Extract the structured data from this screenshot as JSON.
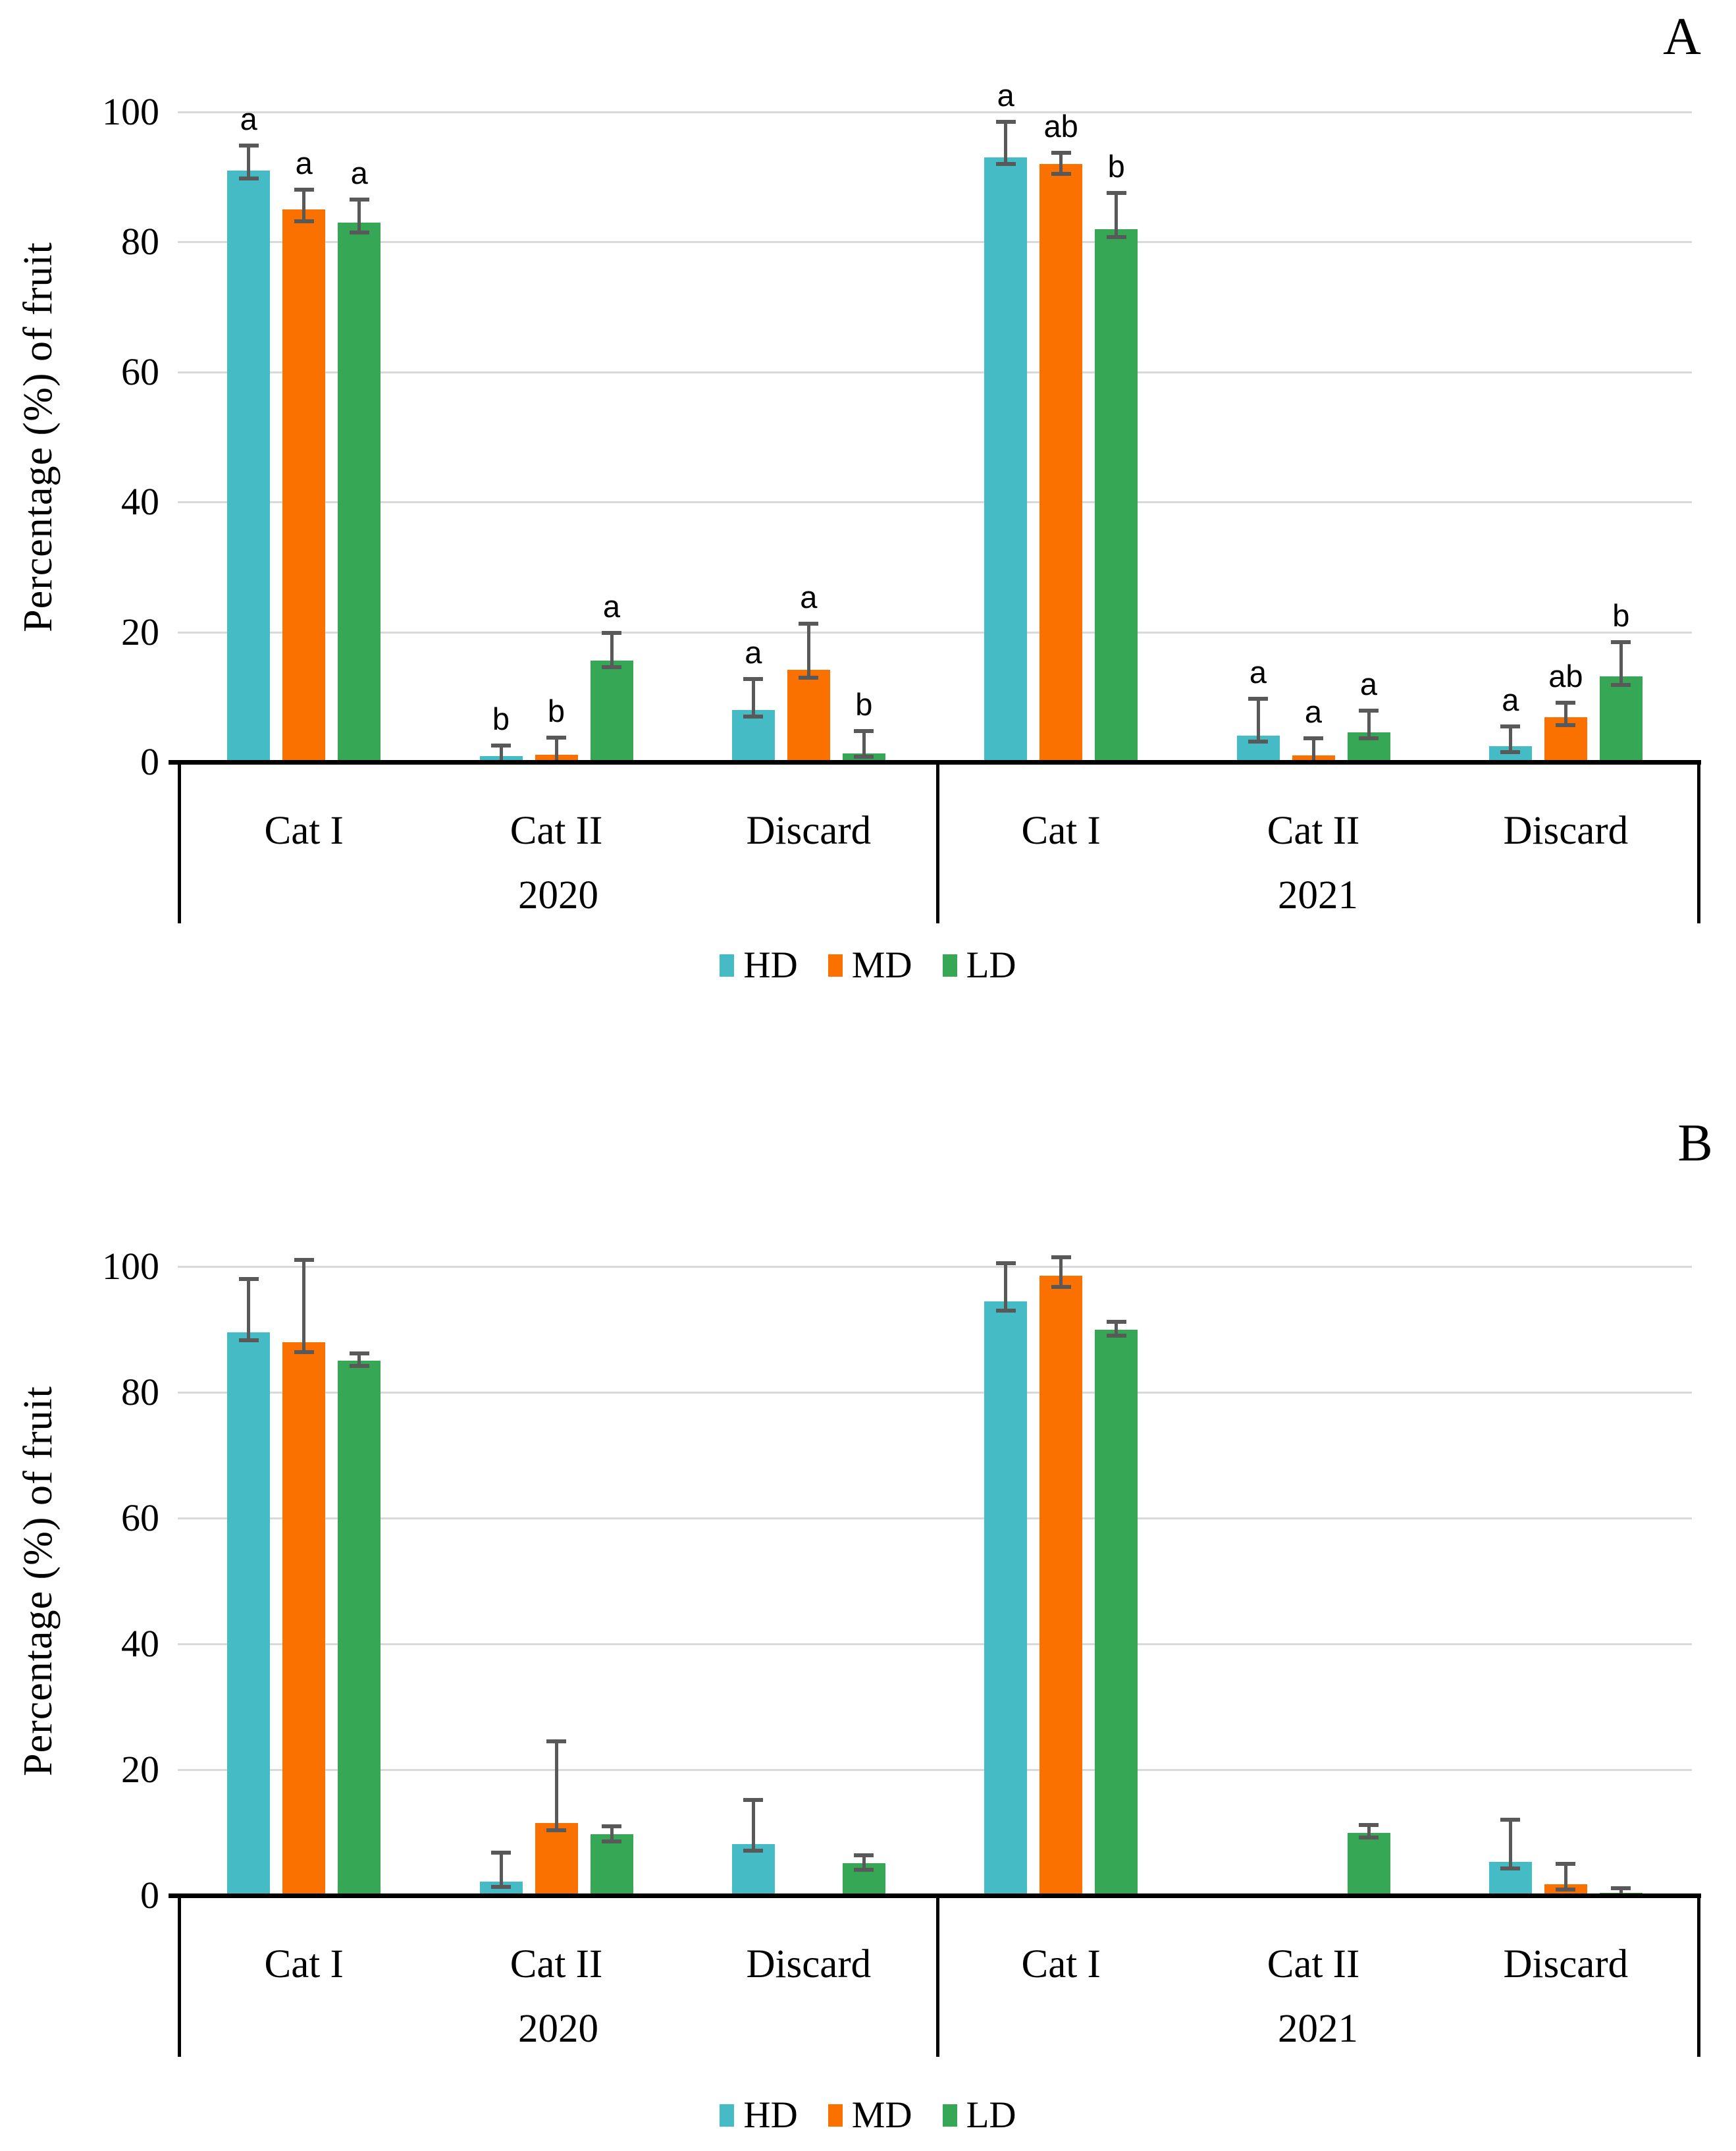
{
  "page_background": "#FFFFFF",
  "colors": {
    "series": {
      "HD": "#45BCC5",
      "MD": "#FB7100",
      "LD": "#36A755"
    },
    "error_bar": "#595959",
    "gridline": "#D9D9D9",
    "axis": "#000000",
    "text": "#000000"
  },
  "legend": {
    "items": [
      {
        "label": "HD",
        "color": "#45BCC5"
      },
      {
        "label": "MD",
        "color": "#FB7100"
      },
      {
        "label": "LD",
        "color": "#36A755"
      }
    ]
  },
  "chart_data": [
    {
      "type": "bar",
      "subtype": "grouped-bar-with-error-bars",
      "panel_label": "A",
      "ylabel": "Percentage (%) of fruit",
      "ylim": [
        0,
        100
      ],
      "yticks": [
        0,
        20,
        40,
        60,
        80,
        100
      ],
      "grid": true,
      "legend_position": "bottom-center",
      "series_names": [
        "HD",
        "MD",
        "LD"
      ],
      "year_groups": [
        {
          "label": "2020",
          "categories": [
            {
              "label": "Cat I",
              "bars": [
                {
                  "series": "HD",
                  "value": 91,
                  "err_up": 3.8,
                  "err_down": 1.2,
                  "letter": "a"
                },
                {
                  "series": "MD",
                  "value": 85,
                  "err_up": 3.0,
                  "err_down": 1.8,
                  "letter": "a"
                },
                {
                  "series": "LD",
                  "value": 83,
                  "err_up": 3.5,
                  "err_down": 1.5,
                  "letter": "a"
                }
              ]
            },
            {
              "label": "Cat II",
              "bars": [
                {
                  "series": "HD",
                  "value": 0.9,
                  "err_up": 1.6,
                  "err_down": 0.9,
                  "letter": "b"
                },
                {
                  "series": "MD",
                  "value": 1.1,
                  "err_up": 2.6,
                  "err_down": 1.1,
                  "letter": "b"
                },
                {
                  "series": "LD",
                  "value": 15.6,
                  "err_up": 4.3,
                  "err_down": 1.0,
                  "letter": "a"
                }
              ]
            },
            {
              "label": "Discard",
              "bars": [
                {
                  "series": "HD",
                  "value": 8.0,
                  "err_up": 4.8,
                  "err_down": 1.0,
                  "letter": "a"
                },
                {
                  "series": "MD",
                  "value": 14.2,
                  "err_up": 7.1,
                  "err_down": 1.2,
                  "letter": "a"
                },
                {
                  "series": "LD",
                  "value": 1.3,
                  "err_up": 3.5,
                  "err_down": 0.5,
                  "letter": "b"
                }
              ]
            }
          ]
        },
        {
          "label": "2021",
          "categories": [
            {
              "label": "Cat I",
              "bars": [
                {
                  "series": "HD",
                  "value": 93,
                  "err_up": 5.5,
                  "err_down": 1.0,
                  "letter": "a"
                },
                {
                  "series": "MD",
                  "value": 92,
                  "err_up": 1.7,
                  "err_down": 1.5,
                  "letter": "ab"
                },
                {
                  "series": "LD",
                  "value": 82,
                  "err_up": 5.5,
                  "err_down": 1.3,
                  "letter": "b"
                }
              ]
            },
            {
              "label": "Cat II",
              "bars": [
                {
                  "series": "HD",
                  "value": 4.1,
                  "err_up": 5.6,
                  "err_down": 1.0,
                  "letter": "a"
                },
                {
                  "series": "MD",
                  "value": 1.0,
                  "err_up": 2.6,
                  "err_down": 1.0,
                  "letter": "a"
                },
                {
                  "series": "LD",
                  "value": 4.6,
                  "err_up": 3.3,
                  "err_down": 1.0,
                  "letter": "a"
                }
              ]
            },
            {
              "label": "Discard",
              "bars": [
                {
                  "series": "HD",
                  "value": 2.4,
                  "err_up": 3.1,
                  "err_down": 0.9,
                  "letter": "a"
                },
                {
                  "series": "MD",
                  "value": 6.9,
                  "err_up": 2.2,
                  "err_down": 1.2,
                  "letter": "ab"
                },
                {
                  "series": "LD",
                  "value": 13.2,
                  "err_up": 5.2,
                  "err_down": 1.3,
                  "letter": "b"
                }
              ]
            }
          ]
        }
      ]
    },
    {
      "type": "bar",
      "subtype": "grouped-bar-with-error-bars",
      "panel_label": "B",
      "ylabel": "Percentage (%) of fruit",
      "ylim": [
        0,
        100
      ],
      "yticks": [
        0,
        20,
        40,
        60,
        80,
        100
      ],
      "grid": true,
      "legend_position": "bottom-center",
      "series_names": [
        "HD",
        "MD",
        "LD"
      ],
      "year_groups": [
        {
          "label": "2020",
          "categories": [
            {
              "label": "Cat I",
              "bars": [
                {
                  "series": "HD",
                  "value": 89.5,
                  "err_up": 8.5,
                  "err_down": 1.2,
                  "letter": ""
                },
                {
                  "series": "MD",
                  "value": 88,
                  "err_up": 13.0,
                  "err_down": 1.6,
                  "letter": ""
                },
                {
                  "series": "LD",
                  "value": 85,
                  "err_up": 1.2,
                  "err_down": 0.8,
                  "letter": ""
                }
              ]
            },
            {
              "label": "Cat II",
              "bars": [
                {
                  "series": "HD",
                  "value": 2.2,
                  "err_up": 4.6,
                  "err_down": 0.8,
                  "letter": ""
                },
                {
                  "series": "MD",
                  "value": 11.5,
                  "err_up": 13.0,
                  "err_down": 1.1,
                  "letter": ""
                },
                {
                  "series": "LD",
                  "value": 9.7,
                  "err_up": 1.3,
                  "err_down": 1.1,
                  "letter": ""
                }
              ]
            },
            {
              "label": "Discard",
              "bars": [
                {
                  "series": "HD",
                  "value": 8.2,
                  "err_up": 7.0,
                  "err_down": 1.1,
                  "letter": ""
                },
                {
                  "series": "MD",
                  "value": 0,
                  "err_up": null,
                  "err_down": null,
                  "letter": ""
                },
                {
                  "series": "LD",
                  "value": 5.1,
                  "err_up": 1.3,
                  "err_down": 1.0,
                  "letter": ""
                }
              ]
            }
          ]
        },
        {
          "label": "2021",
          "categories": [
            {
              "label": "Cat I",
              "bars": [
                {
                  "series": "HD",
                  "value": 94.5,
                  "err_up": 6.0,
                  "err_down": 1.5,
                  "letter": ""
                },
                {
                  "series": "MD",
                  "value": 98.5,
                  "err_up": 3.0,
                  "err_down": 1.7,
                  "letter": ""
                },
                {
                  "series": "LD",
                  "value": 90,
                  "err_up": 1.2,
                  "err_down": 1.0,
                  "letter": ""
                }
              ]
            },
            {
              "label": "Cat II",
              "bars": [
                {
                  "series": "HD",
                  "value": 0,
                  "err_up": null,
                  "err_down": null,
                  "letter": ""
                },
                {
                  "series": "MD",
                  "value": 0,
                  "err_up": null,
                  "err_down": null,
                  "letter": ""
                },
                {
                  "series": "LD",
                  "value": 10,
                  "err_up": 1.2,
                  "err_down": 0.8,
                  "letter": ""
                }
              ]
            },
            {
              "label": "Discard",
              "bars": [
                {
                  "series": "HD",
                  "value": 5.3,
                  "err_up": 6.7,
                  "err_down": 1.0,
                  "letter": ""
                },
                {
                  "series": "MD",
                  "value": 1.8,
                  "err_up": 3.2,
                  "err_down": 0.9,
                  "letter": ""
                },
                {
                  "series": "LD",
                  "value": 0.4,
                  "err_up": 0.8,
                  "err_down": 0.4,
                  "letter": ""
                }
              ]
            }
          ]
        }
      ]
    }
  ]
}
